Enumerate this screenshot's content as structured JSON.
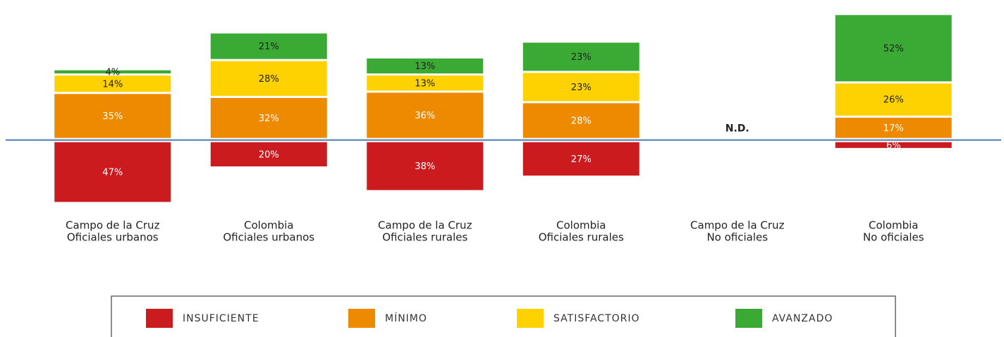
{
  "chart_data": {
    "type": "diverging-stacked-bar",
    "categories": [
      [
        "Campo de la Cruz",
        "Oficiales urbanos"
      ],
      [
        "Colombia",
        "Oficiales urbanos"
      ],
      [
        "Campo de la Cruz",
        "Oficiales rurales"
      ],
      [
        "Colombia",
        "Oficiales rurales"
      ],
      [
        "Campo de la Cruz",
        "No oficiales"
      ],
      [
        "Colombia",
        "No oficiales"
      ]
    ],
    "series": [
      {
        "name": "INSUFICIENTE",
        "color": "#cc1b1f",
        "label_color": "#ffffff",
        "below": true,
        "values": [
          47,
          20,
          38,
          27,
          null,
          6
        ],
        "value_labels": [
          "47%",
          "20%",
          "38%",
          "27%",
          null,
          "6%"
        ]
      },
      {
        "name": "MÍNIMO",
        "color": "#ee8a00",
        "label_color": "#ffffff",
        "values": [
          35,
          32,
          36,
          28,
          null,
          17
        ],
        "value_labels": [
          "35%",
          "32%",
          "36%",
          "28%",
          null,
          "17%"
        ]
      },
      {
        "name": "SATISFACTORIO",
        "color": "#fdd200",
        "label_color": "#222222",
        "values": [
          14,
          28,
          13,
          23,
          null,
          26
        ],
        "value_labels": [
          "14%",
          "28%",
          "13%",
          "23%",
          null,
          "26%"
        ]
      },
      {
        "name": "AVANZADO",
        "color": "#3aaa35",
        "label_color": "#222222",
        "values": [
          4,
          21,
          13,
          23,
          null,
          52
        ],
        "value_labels": [
          "4%",
          "21%",
          "13%",
          "23%",
          null,
          "52%"
        ]
      }
    ],
    "annotations": [
      {
        "text": "N.D.",
        "x": 4
      }
    ],
    "ylim": [
      -50,
      100
    ],
    "baseline_color": "#4a7ab5"
  }
}
